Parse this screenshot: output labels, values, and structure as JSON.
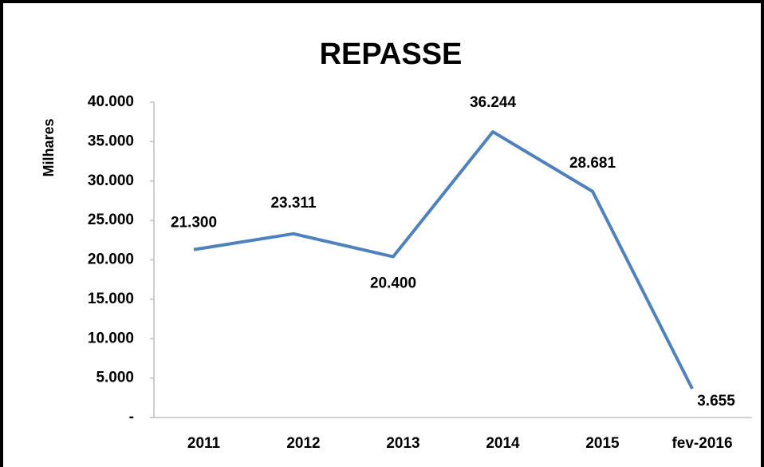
{
  "chart_data": {
    "type": "line",
    "title": "REPASSE",
    "y_label": "Milhares",
    "categories": [
      "2011",
      "2012",
      "2013",
      "2014",
      "2015",
      "fev-2016"
    ],
    "series": [
      {
        "name": "REPASSE",
        "color": "#4f81bd",
        "values": [
          21300,
          23311,
          20400,
          36244,
          28681,
          3655
        ],
        "value_labels": [
          "21.300",
          "23.311",
          "20.400",
          "36.244",
          "28.681",
          "3.655"
        ]
      }
    ],
    "ylim": [
      0,
      40000
    ],
    "yticks": [
      {
        "value": 0,
        "label": "-"
      },
      {
        "value": 5000,
        "label": "5.000"
      },
      {
        "value": 10000,
        "label": "10.000"
      },
      {
        "value": 15000,
        "label": "15.000"
      },
      {
        "value": 20000,
        "label": "20.000"
      },
      {
        "value": 25000,
        "label": "25.000"
      },
      {
        "value": 30000,
        "label": "30.000"
      },
      {
        "value": 35000,
        "label": "35.000"
      },
      {
        "value": 40000,
        "label": "40.000"
      }
    ],
    "grid": false
  }
}
